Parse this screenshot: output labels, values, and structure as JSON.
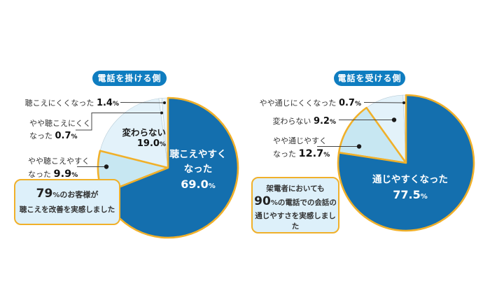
{
  "style": {
    "background": "#ffffff",
    "pie_main_blue": "#146fae",
    "pie_medium_blue": "#c7e7f2",
    "pie_pale_blue": "#e3f2fa",
    "pie_sliver_blue": "#f2fafd",
    "accent_yellow": "#f0b02a",
    "badge_blue": "#0f7dc0",
    "note_bg": "#ddf0fa",
    "text_dark": "#333333",
    "label_white": "#ffffff"
  },
  "chart_data": [
    {
      "type": "pie",
      "title": "電話を掛ける側",
      "categories": [
        "聴こえやすくなった",
        "やや聴こえやすくなった",
        "変わらない",
        "やや聴こえにくくなった",
        "聴こえにくくなった"
      ],
      "values": [
        69.0,
        9.9,
        19.0,
        0.7,
        1.4
      ],
      "unit": "%",
      "colors": [
        "#146fae",
        "#c7e7f2",
        "#e3f2fa",
        "#f2fafd",
        "#eaf5fb"
      ],
      "start_angle_deg": 0,
      "direction": "clockwise",
      "legend_position": "callouts",
      "annotation": "79%のお客様が聴こえを改善を実感しました"
    },
    {
      "type": "pie",
      "title": "電話を受ける側",
      "categories": [
        "通じやすくなった",
        "やや通じやすくなった",
        "変わらない",
        "やや通じにくくなった"
      ],
      "values": [
        77.5,
        12.7,
        9.2,
        0.7
      ],
      "unit": "%",
      "colors": [
        "#146fae",
        "#c7e7f2",
        "#e3f2fa",
        "#f2fafd"
      ],
      "start_angle_deg": 0,
      "direction": "clockwise",
      "legend_position": "callouts",
      "annotation": "架電者においても90%の電話での会話の通じやすさを実感しました"
    }
  ],
  "charts": [
    {
      "badge": "電話を掛ける側",
      "callouts": {
        "worse": {
          "text": "聴こえにくくなった ",
          "pct": "1.4",
          "unit": "%"
        },
        "slightly_worse": {
          "line1": "やや聴こえにくく",
          "line2": "なった ",
          "pct": "0.7",
          "unit": "%"
        },
        "no_change": {
          "text": "変わらない",
          "pct": "19.0",
          "unit": "%"
        },
        "slightly_better": {
          "line1": "やや聴こえやすく",
          "line2": "なった ",
          "pct": "9.9",
          "unit": "%"
        },
        "better": {
          "line1": "聴こえやすく",
          "line2": "なった",
          "pct": "69.0",
          "unit": "%"
        }
      },
      "note": {
        "big": "79",
        "big_unit": "%",
        "line1_rest": "のお客様が",
        "line2": "聴こえを改善を実感しました"
      }
    },
    {
      "badge": "電話を受ける側",
      "callouts": {
        "slightly_worse": {
          "text": "やや通じにくくなった ",
          "pct": "0.7",
          "unit": "%"
        },
        "no_change": {
          "text": "変わらない ",
          "pct": "9.2",
          "unit": "%"
        },
        "slightly_better": {
          "line1": "やや通じやすく",
          "line2": "なった ",
          "pct": "12.7",
          "unit": "%"
        },
        "better": {
          "line1": "通じやすくなった",
          "pct": "77.5",
          "unit": "%"
        }
      },
      "note": {
        "line1": "架電者においても",
        "big": "90",
        "big_unit": "%",
        "line2_rest": "の電話での会話の",
        "line3": "通じやすさを実感しました"
      }
    }
  ]
}
